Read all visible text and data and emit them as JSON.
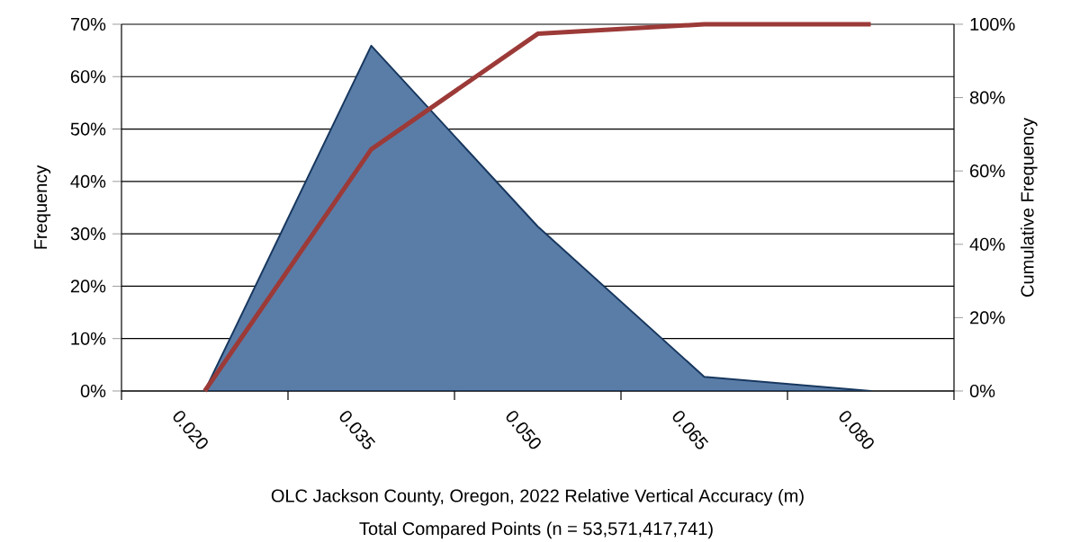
{
  "chart_data": {
    "type": "area",
    "xlabel": "OLC Jackson County, Oregon, 2022 Relative Vertical Accuracy (m)",
    "ylabel": "Frequency",
    "y2label": "Cumulative Frequency",
    "annotations": [
      "Total Compared Points (n = 53,571,417,741)"
    ],
    "categories": [
      "0.020",
      "0.035",
      "0.050",
      "0.065",
      "0.080"
    ],
    "series": [
      {
        "color": "#5a7da8",
        "values": [
          0,
          65.9,
          31.4,
          2.7,
          0
        ]
      },
      {
        "type": "line",
        "axis": "y2",
        "color": "#9c3a38",
        "values": [
          0,
          65.9,
          97.4,
          100,
          100
        ]
      }
    ],
    "ylim": [
      0,
      70
    ],
    "yticks": [
      {
        "value": 0,
        "label": "0%"
      },
      {
        "value": 10,
        "label": "10%"
      },
      {
        "value": 20,
        "label": "20%"
      },
      {
        "value": 30,
        "label": "30%"
      },
      {
        "value": 40,
        "label": "40%"
      },
      {
        "value": 50,
        "label": "50%"
      },
      {
        "value": 60,
        "label": "60%"
      },
      {
        "value": 70,
        "label": "70%"
      }
    ],
    "y2lim": [
      0,
      100
    ],
    "y2ticks": [
      {
        "value": 0,
        "label": "0%"
      },
      {
        "value": 20,
        "label": "20%"
      },
      {
        "value": 40,
        "label": "40%"
      },
      {
        "value": 60,
        "label": "60%"
      },
      {
        "value": 80,
        "label": "80%"
      },
      {
        "value": 100,
        "label": "100%"
      }
    ],
    "grid": "y",
    "legend": false,
    "marker": "none",
    "line_style": "solid"
  }
}
